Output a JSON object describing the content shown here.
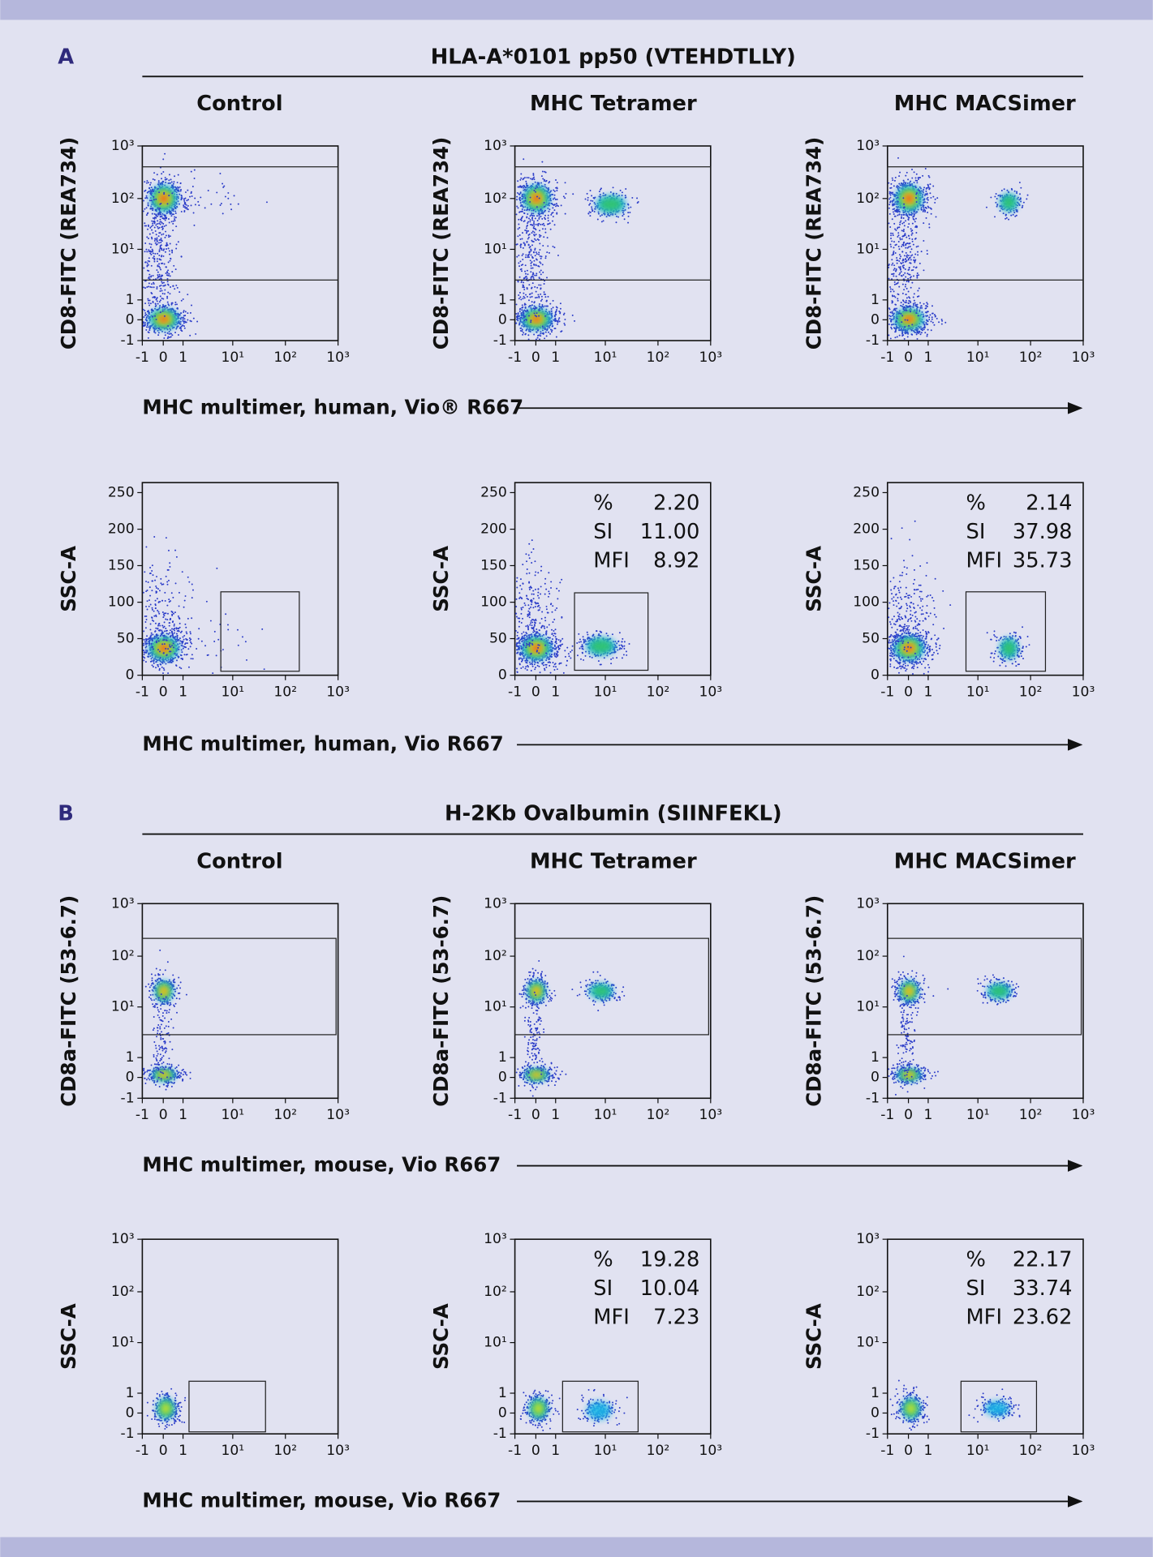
{
  "sections": [
    {
      "label": "A",
      "title": "HLA-A*0101 pp50 (VTEHDTLLY)",
      "columns": [
        "Control",
        "MHC Tetramer",
        "MHC MACSimer"
      ],
      "rows": [
        {
          "y_title": "CD8-FITC (REA734)",
          "y_ticks": [
            "10³",
            "10²",
            "10¹",
            "1",
            "0",
            "-1"
          ],
          "x_ticks": [
            "-1",
            "0",
            "1",
            "10¹",
            "10²",
            "10³"
          ],
          "x_title": "MHC multimer, human, Vio® R667",
          "stats": []
        },
        {
          "y_title": "SSC-A",
          "y_ticks": [
            "250",
            "200",
            "150",
            "100",
            "50",
            "0"
          ],
          "x_ticks": [
            "-1",
            "0",
            "1",
            "10¹",
            "10²",
            "10³"
          ],
          "x_title": "MHC multimer, human, Vio R667",
          "stats": [
            [
              [
                "%",
                "2.20"
              ],
              [
                "SI",
                "11.00"
              ],
              [
                "MFI",
                "8.92"
              ]
            ],
            [
              [
                "%",
                "2.14"
              ],
              [
                "SI",
                "37.98"
              ],
              [
                "MFI",
                "35.73"
              ]
            ]
          ]
        }
      ]
    },
    {
      "label": "B",
      "title": "H-2Kb Ovalbumin (SIINFEKL)",
      "columns": [
        "Control",
        "MHC Tetramer",
        "MHC MACSimer"
      ],
      "rows": [
        {
          "y_title": "CD8a-FITC (53-6.7)",
          "y_ticks": [
            "10³",
            "10²",
            "10¹",
            "1",
            "0",
            "-1"
          ],
          "x_ticks": [
            "-1",
            "0",
            "1",
            "10¹",
            "10²",
            "10³"
          ],
          "x_title": "MHC multimer, mouse, Vio R667",
          "stats": []
        },
        {
          "y_title": "SSC-A",
          "y_ticks": [
            "10³",
            "10²",
            "10¹",
            "1",
            "0",
            "-1"
          ],
          "x_ticks": [
            "-1",
            "0",
            "1",
            "10¹",
            "10²",
            "10³"
          ],
          "x_title": "MHC multimer, mouse, Vio R667",
          "stats": [
            [
              [
                "%",
                "19.28"
              ],
              [
                "SI",
                "10.04"
              ],
              [
                "MFI",
                "7.23"
              ]
            ],
            [
              [
                "%",
                "22.17"
              ],
              [
                "SI",
                "33.74"
              ],
              [
                "MFI",
                "23.62"
              ]
            ]
          ]
        }
      ]
    }
  ]
}
